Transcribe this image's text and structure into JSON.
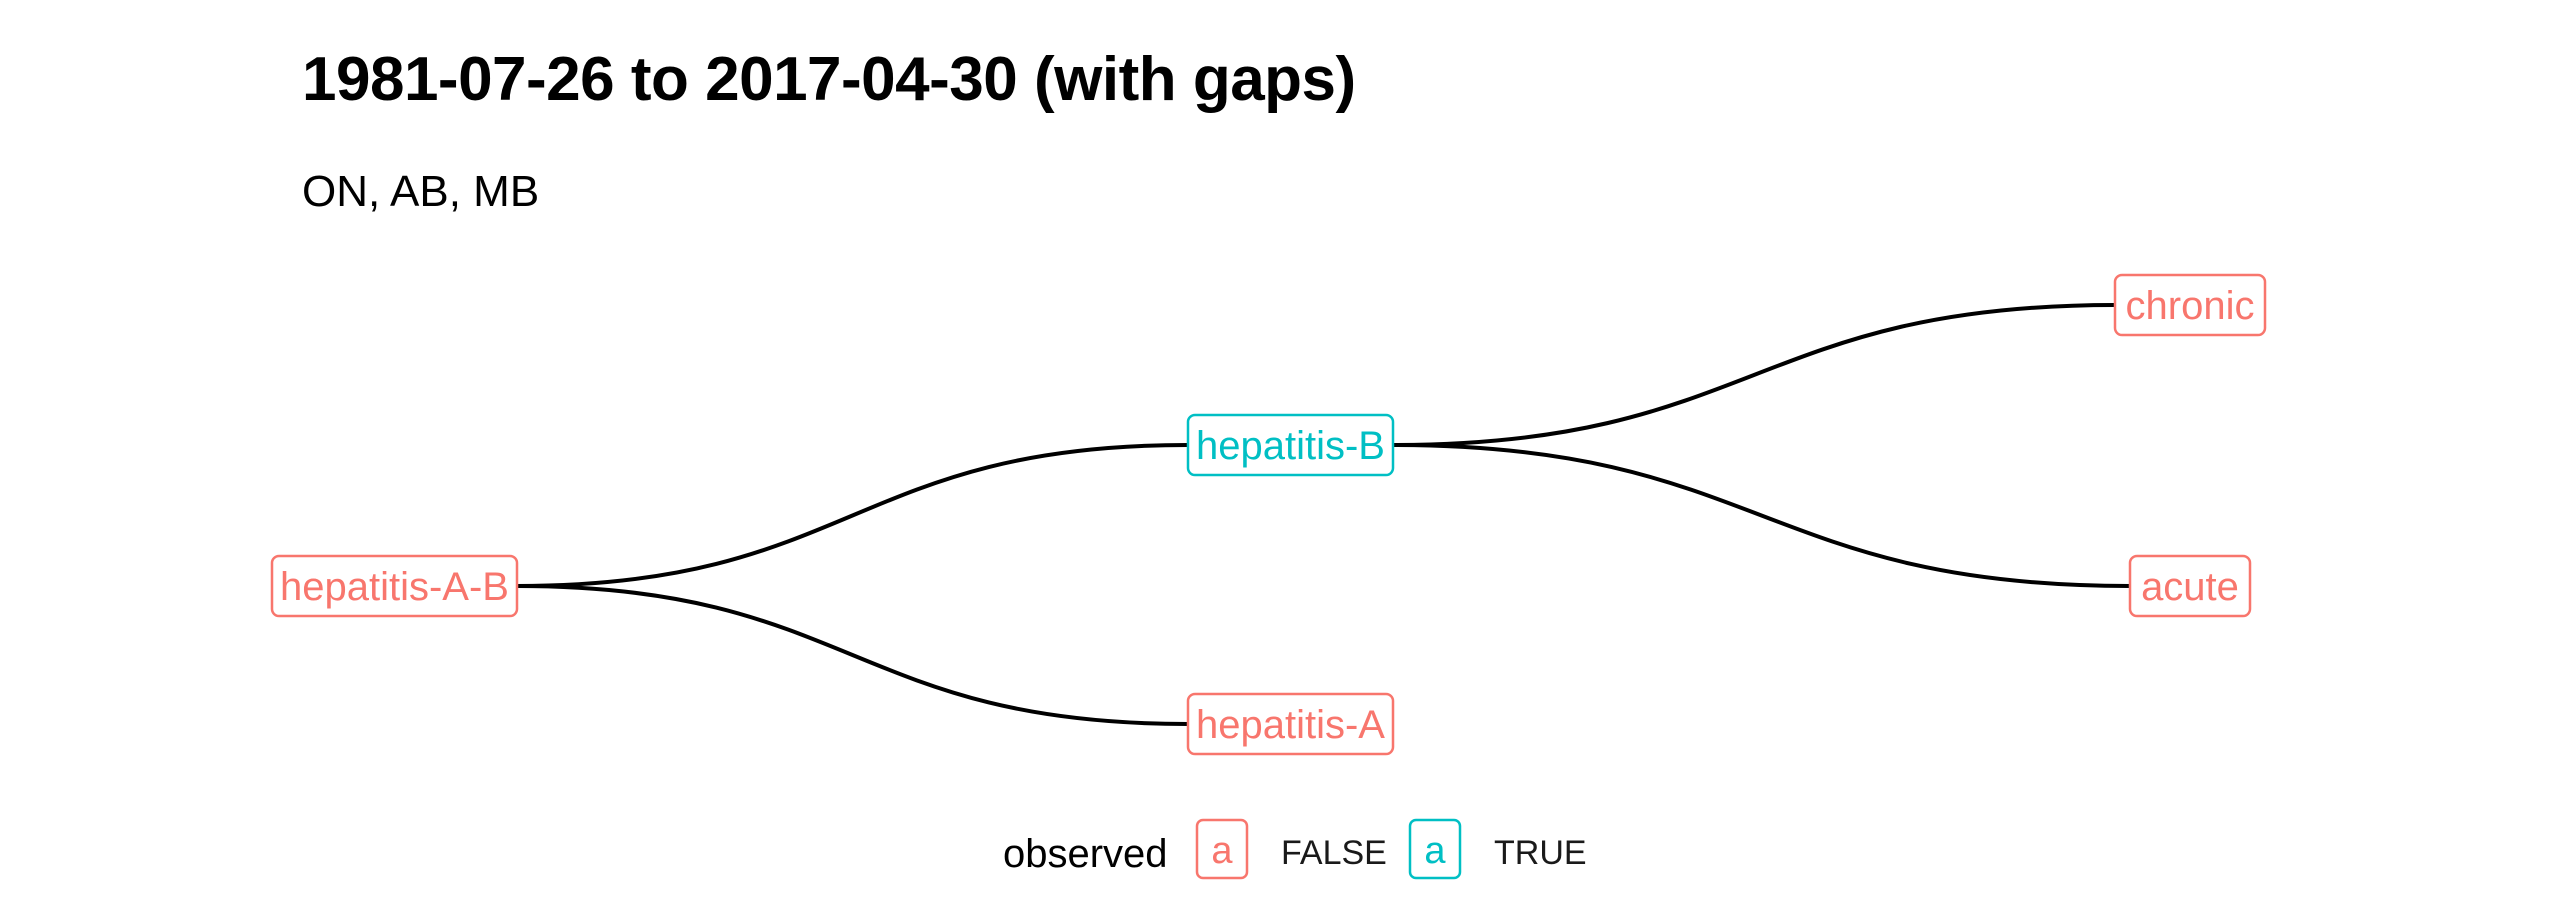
{
  "title": "1981-07-26 to 2017-04-30 (with gaps)",
  "subtitle": "ON, AB, MB",
  "colors": {
    "false": "#F8766D",
    "true": "#00BFC4",
    "edge": "#000000"
  },
  "nodes": [
    {
      "id": "hepatitis-A-B",
      "label": "hepatitis-A-B",
      "observed": false
    },
    {
      "id": "hepatitis-B",
      "label": "hepatitis-B",
      "observed": true
    },
    {
      "id": "hepatitis-A",
      "label": "hepatitis-A",
      "observed": false
    },
    {
      "id": "chronic",
      "label": "chronic",
      "observed": false
    },
    {
      "id": "acute",
      "label": "acute",
      "observed": false
    }
  ],
  "edges": [
    {
      "from": "hepatitis-A-B",
      "to": "hepatitis-B"
    },
    {
      "from": "hepatitis-A-B",
      "to": "hepatitis-A"
    },
    {
      "from": "hepatitis-B",
      "to": "chronic"
    },
    {
      "from": "hepatitis-B",
      "to": "acute"
    }
  ],
  "legend": {
    "title": "observed",
    "key_glyph": "a",
    "items": [
      {
        "label": "FALSE",
        "observed": false
      },
      {
        "label": "TRUE",
        "observed": true
      }
    ]
  }
}
